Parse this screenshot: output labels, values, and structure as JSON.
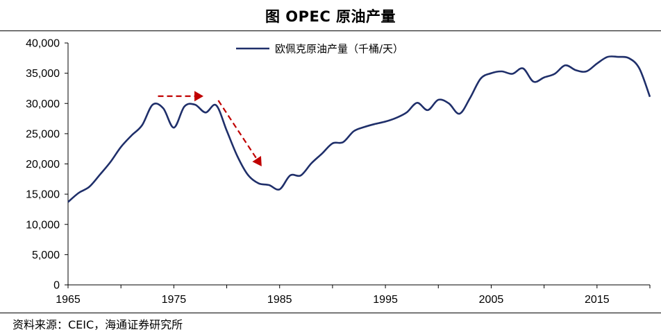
{
  "header": {
    "title": "图  OPEC 原油产量"
  },
  "footer": {
    "source": "资料来源：CEIC，海通证券研究所"
  },
  "colors": {
    "series": "#1f2f6a",
    "annotation": "#c00000",
    "axis": "#000000"
  },
  "chart_data": {
    "type": "line",
    "title": "图  OPEC 原油产量",
    "xlabel": "",
    "ylabel": "",
    "xlim": [
      1965,
      2020
    ],
    "ylim": [
      0,
      40000
    ],
    "x_ticks": [
      1965,
      1975,
      1985,
      1995,
      2005,
      2015
    ],
    "x_tick_labels": [
      "1965",
      "1975",
      "1985",
      "1995",
      "2005",
      "2015"
    ],
    "y_ticks": [
      0,
      5000,
      10000,
      15000,
      20000,
      25000,
      30000,
      35000,
      40000
    ],
    "y_tick_labels": [
      "0",
      "5,000",
      "10,000",
      "15,000",
      "20,000",
      "25,000",
      "30,000",
      "35,000",
      "40,000"
    ],
    "grid": false,
    "legend": {
      "position": "top-center",
      "entries": [
        "欧佩克原油产量（千桶/天）"
      ]
    },
    "series": [
      {
        "name": "欧佩克原油产量（千桶/天）",
        "x": [
          1965,
          1966,
          1967,
          1968,
          1969,
          1970,
          1971,
          1972,
          1973,
          1974,
          1975,
          1976,
          1977,
          1978,
          1979,
          1980,
          1981,
          1982,
          1983,
          1984,
          1985,
          1986,
          1987,
          1988,
          1989,
          1990,
          1991,
          1992,
          1993,
          1994,
          1995,
          1996,
          1997,
          1998,
          1999,
          2000,
          2001,
          2002,
          2003,
          2004,
          2005,
          2006,
          2007,
          2008,
          2009,
          2010,
          2011,
          2012,
          2013,
          2014,
          2015,
          2016,
          2017,
          2018,
          2019,
          2020
        ],
        "values": [
          13700,
          15200,
          16200,
          18200,
          20300,
          22800,
          24700,
          26400,
          29800,
          29200,
          26000,
          29500,
          29800,
          28500,
          29700,
          25500,
          21300,
          18200,
          16800,
          16500,
          15800,
          18100,
          18100,
          20100,
          21700,
          23400,
          23600,
          25400,
          26100,
          26600,
          27000,
          27600,
          28500,
          30100,
          28900,
          30600,
          30000,
          28300,
          30900,
          34100,
          35000,
          35300,
          34900,
          35800,
          33600,
          34300,
          34900,
          36300,
          35500,
          35300,
          36600,
          37700,
          37700,
          37500,
          35800,
          31100
        ]
      }
    ],
    "annotations": [
      {
        "type": "arrow",
        "style": "dashed",
        "from": [
          1973.5,
          31200
        ],
        "to": [
          1977.8,
          31200
        ]
      },
      {
        "type": "arrow",
        "style": "dashed",
        "from": [
          1979.2,
          30500
        ],
        "to": [
          1983.3,
          19600
        ]
      }
    ]
  }
}
